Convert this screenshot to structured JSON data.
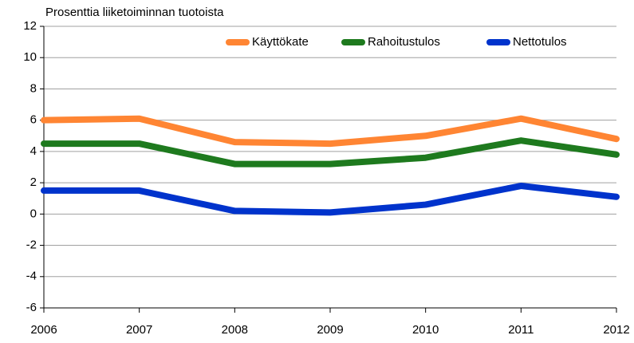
{
  "chart_data": {
    "type": "line",
    "y_label": "Prosenttia liiketoiminnan tuotoista",
    "x": [
      2006,
      2007,
      2008,
      2009,
      2010,
      2011,
      2012
    ],
    "series": [
      {
        "name": "Käyttökate",
        "color": "#ff8533",
        "values": [
          6.0,
          6.1,
          4.6,
          4.5,
          5.0,
          6.1,
          4.8
        ]
      },
      {
        "name": "Rahoitustulos",
        "color": "#1e7a1e",
        "values": [
          4.5,
          4.5,
          3.2,
          3.2,
          3.6,
          4.7,
          3.8
        ]
      },
      {
        "name": "Nettotulos",
        "color": "#0033cc",
        "values": [
          1.5,
          1.5,
          0.2,
          0.1,
          0.6,
          1.8,
          1.1
        ]
      }
    ],
    "xlim": [
      2006,
      2012
    ],
    "xticks": [
      2006,
      2007,
      2008,
      2009,
      2010,
      2011,
      2012
    ],
    "ylim": [
      -6,
      12
    ],
    "yticks": [
      -6,
      -4,
      -2,
      0,
      2,
      4,
      6,
      8,
      10,
      12
    ],
    "grid": true,
    "legend": "top-right"
  }
}
